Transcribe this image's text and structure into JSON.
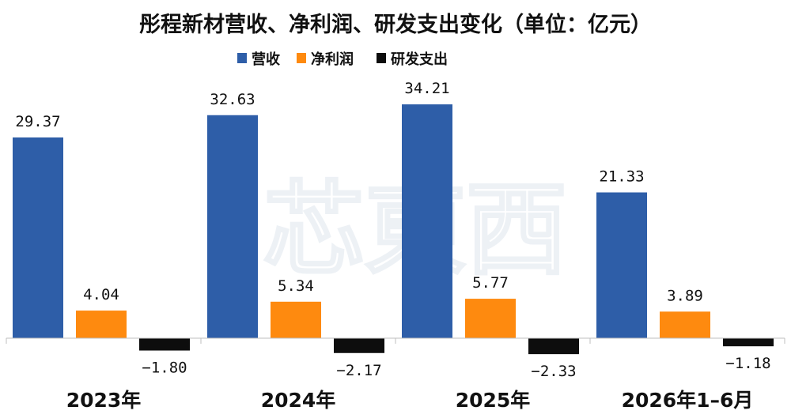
{
  "chart_data": {
    "type": "bar",
    "title": "彤程新材营收、净利润、研发支出变化（单位：亿元）",
    "categories": [
      "2023年",
      "2024年",
      "2025年",
      "2026年1–6月"
    ],
    "series": [
      {
        "name": "营收",
        "color": "#2e5ea8",
        "values": [
          29.37,
          32.63,
          34.21,
          21.33
        ],
        "labels": [
          "29.37",
          "32.63",
          "34.21",
          "21.33"
        ]
      },
      {
        "name": "净利润",
        "color": "#fe8a0f",
        "values": [
          4.04,
          5.34,
          5.77,
          3.89
        ],
        "labels": [
          "4.04",
          "5.34",
          "5.77",
          "3.89"
        ]
      },
      {
        "name": "研发支出",
        "color": "#0d0d0d",
        "values": [
          -1.8,
          -2.17,
          -2.33,
          -1.18
        ],
        "labels": [
          "−1.80",
          "−2.17",
          "−2.33",
          "−1.18"
        ]
      }
    ],
    "ylim": [
      -3,
      36
    ],
    "grid": false,
    "legend": "top-center",
    "xlabel": "",
    "ylabel": ""
  },
  "watermark": "芯東西"
}
